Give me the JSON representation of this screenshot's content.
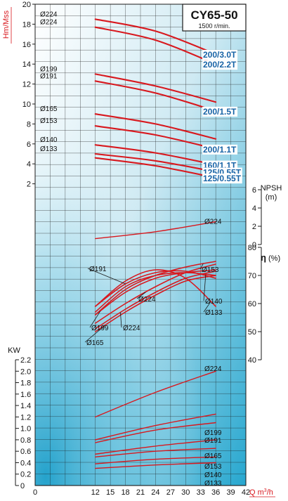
{
  "header": {
    "model": "CY65-50",
    "speed": "1500 r/min."
  },
  "colors": {
    "curve": "#d8181e",
    "label": "#1763a6",
    "grid": "#1a1a1a",
    "bg_light": "#ffffff",
    "bg_dark": "#27a7cf"
  },
  "chart_data": [
    {
      "type": "line",
      "name": "head",
      "ylabel": "Hm",
      "ylabel2": "Mss",
      "xlim": [
        0,
        42
      ],
      "ylim": [
        0,
        20
      ],
      "yticks": [
        "2",
        "4",
        "6",
        "8",
        "10",
        "12",
        "14",
        "16",
        "18",
        "20"
      ],
      "grid": true,
      "series": [
        {
          "name": "Ø224",
          "rating": "200/3.0T",
          "x": [
            12,
            24,
            36
          ],
          "y": [
            18.5,
            17.3,
            15.0
          ]
        },
        {
          "name": "Ø224",
          "rating": "200/2.2T",
          "x": [
            12,
            24,
            36
          ],
          "y": [
            17.7,
            16.4,
            14.0
          ]
        },
        {
          "name": "Ø199",
          "rating": "",
          "x": [
            12,
            24,
            36
          ],
          "y": [
            13.0,
            11.8,
            10.2
          ]
        },
        {
          "name": "Ø191",
          "rating": "200/1.5T",
          "x": [
            12,
            24,
            36
          ],
          "y": [
            12.3,
            11.1,
            9.3
          ]
        },
        {
          "name": "Ø165",
          "rating": "",
          "x": [
            12,
            24,
            36
          ],
          "y": [
            9.0,
            8.0,
            6.5
          ]
        },
        {
          "name": "Ø153",
          "rating": "200/1.1T",
          "x": [
            12,
            24,
            36
          ],
          "y": [
            7.8,
            6.9,
            5.5
          ]
        },
        {
          "name": "Ø140",
          "rating": "160/1.1T",
          "x": [
            12,
            24,
            36
          ],
          "y": [
            5.9,
            5.1,
            3.9
          ]
        },
        {
          "name": "Ø133",
          "rating": "125/0.55T",
          "x": [
            12,
            24,
            36
          ],
          "y": [
            5.0,
            4.3,
            3.2
          ]
        },
        {
          "name": "",
          "rating": "125/0.55T",
          "x": [
            12,
            24,
            36
          ],
          "y": [
            4.6,
            3.8,
            2.6
          ]
        }
      ]
    },
    {
      "type": "line",
      "name": "npsh",
      "ylabel": "NPSH",
      "yunit": "(m)",
      "ylim": [
        0,
        6
      ],
      "yticks": [
        "0",
        "2",
        "4",
        "6"
      ],
      "series": [
        {
          "name": "Ø224",
          "x": [
            12,
            24,
            36
          ],
          "y": [
            0.65,
            1.4,
            2.5
          ]
        }
      ]
    },
    {
      "type": "line",
      "name": "efficiency",
      "ylabel": "η",
      "yunit": "(%)",
      "ylim": [
        40,
        80
      ],
      "yticks": [
        "40",
        "50",
        "60",
        "70",
        "80"
      ],
      "series": [
        {
          "name": "Ø191",
          "x": [
            12,
            18,
            24,
            30,
            36
          ],
          "y": [
            59,
            67,
            71,
            71.5,
            69
          ]
        },
        {
          "name": "Ø153",
          "x": [
            12,
            18,
            24,
            30,
            36
          ],
          "y": [
            56,
            65,
            70,
            73,
            75
          ]
        },
        {
          "name": "Ø224",
          "x": [
            12,
            18,
            24,
            30,
            36
          ],
          "y": [
            53,
            60,
            66,
            71,
            74
          ]
        },
        {
          "name": "Ø140",
          "x": [
            12,
            18,
            24,
            30,
            36
          ],
          "y": [
            57,
            66,
            70,
            71,
            70
          ]
        },
        {
          "name": "Ø133",
          "x": [
            12,
            18,
            24,
            30,
            36
          ],
          "y": [
            59,
            68,
            72,
            69,
            59
          ]
        },
        {
          "name": "Ø199",
          "x": [
            12,
            18,
            24,
            30,
            36
          ],
          "y": [
            56,
            64,
            69,
            71,
            72
          ]
        },
        {
          "name": "Ø224",
          "x": [
            12,
            18,
            24,
            30,
            36
          ],
          "y": [
            51,
            58,
            64,
            69,
            71.5
          ]
        },
        {
          "name": "Ø165",
          "x": [
            12,
            18,
            24,
            30,
            36
          ],
          "y": [
            50,
            57,
            63,
            68,
            70
          ]
        }
      ]
    },
    {
      "type": "line",
      "name": "power",
      "ylabel": "KW",
      "xlabel": "Q m³/h",
      "xticks": [
        "0",
        "12",
        "15",
        "18",
        "21",
        "24",
        "27",
        "30",
        "33",
        "36",
        "39",
        "42"
      ],
      "ylim": [
        0,
        2.2
      ],
      "yticks": [
        "0",
        "0.2",
        "0.4",
        "0.6",
        "0.8",
        "1.0",
        "1.2",
        "1.4",
        "1.6",
        "1.8",
        "2.0",
        "2.2"
      ],
      "series": [
        {
          "name": "Ø224",
          "x": [
            12,
            24,
            36
          ],
          "y": [
            1.2,
            1.63,
            2.0
          ]
        },
        {
          "name": "Ø199",
          "x": [
            12,
            24,
            36
          ],
          "y": [
            0.8,
            1.05,
            1.25
          ]
        },
        {
          "name": "Ø191",
          "x": [
            12,
            24,
            36
          ],
          "y": [
            0.75,
            0.97,
            1.1
          ]
        },
        {
          "name": "Ø165",
          "x": [
            12,
            24,
            36
          ],
          "y": [
            0.55,
            0.69,
            0.8
          ]
        },
        {
          "name": "Ø153",
          "x": [
            12,
            24,
            36
          ],
          "y": [
            0.5,
            0.6,
            0.65
          ]
        },
        {
          "name": "Ø140",
          "x": [
            12,
            24,
            36
          ],
          "y": [
            0.38,
            0.46,
            0.5
          ]
        },
        {
          "name": "Ø133",
          "x": [
            12,
            24,
            36
          ],
          "y": [
            0.3,
            0.36,
            0.4
          ]
        }
      ]
    }
  ]
}
